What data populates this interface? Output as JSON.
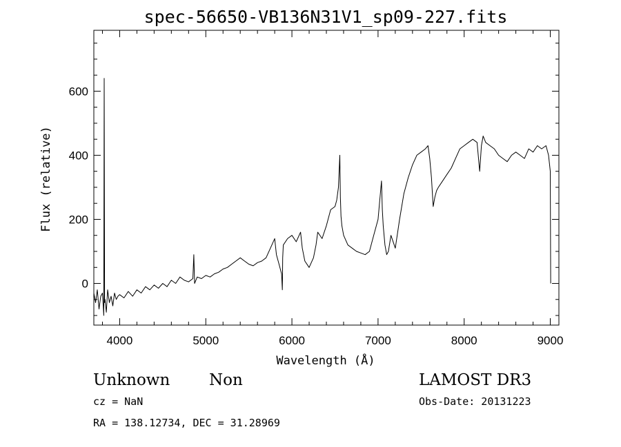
{
  "chart_data": {
    "type": "line",
    "title": "spec-56650-VB136N31V1_sp09-227.fits",
    "xlabel": "Wavelength (Å)",
    "ylabel": "Flux (relative)",
    "xlim": [
      3700,
      9100
    ],
    "ylim": [
      -130,
      790
    ],
    "x_ticks": [
      4000,
      5000,
      6000,
      7000,
      8000,
      9000
    ],
    "x_tick_labels": [
      "4000",
      "5000",
      "6000",
      "7000",
      "8000",
      "9000"
    ],
    "y_ticks": [
      0,
      200,
      400,
      600
    ],
    "y_tick_labels": [
      "0",
      "200",
      "400",
      "600"
    ],
    "grid": false,
    "series": [
      {
        "color": "#000000",
        "x": [
          3700,
          3720,
          3740,
          3760,
          3780,
          3800,
          3815,
          3820,
          3825,
          3830,
          3845,
          3860,
          3880,
          3900,
          3920,
          3940,
          3960,
          3980,
          4000,
          4050,
          4100,
          4150,
          4200,
          4250,
          4300,
          4350,
          4400,
          4450,
          4500,
          4550,
          4600,
          4650,
          4700,
          4750,
          4800,
          4850,
          4861,
          4870,
          4900,
          4950,
          5000,
          5050,
          5100,
          5150,
          5200,
          5250,
          5300,
          5350,
          5400,
          5450,
          5500,
          5550,
          5600,
          5650,
          5700,
          5750,
          5800,
          5820,
          5850,
          5880,
          5889,
          5893,
          5900,
          5950,
          6000,
          6050,
          6100,
          6120,
          6150,
          6200,
          6250,
          6280,
          6300,
          6350,
          6400,
          6450,
          6500,
          6520,
          6540,
          6556,
          6563,
          6570,
          6580,
          6600,
          6650,
          6700,
          6750,
          6800,
          6850,
          6900,
          6950,
          7000,
          7020,
          7040,
          7050,
          7060,
          7080,
          7100,
          7120,
          7150,
          7200,
          7250,
          7300,
          7350,
          7400,
          7450,
          7500,
          7550,
          7580,
          7600,
          7620,
          7640,
          7660,
          7680,
          7700,
          7750,
          7800,
          7850,
          7900,
          7950,
          8000,
          8050,
          8100,
          8150,
          8180,
          8200,
          8220,
          8250,
          8300,
          8350,
          8400,
          8450,
          8500,
          8550,
          8600,
          8650,
          8700,
          8750,
          8800,
          8850,
          8900,
          8950,
          8980,
          9000,
          9005
        ],
        "values": [
          -30,
          -60,
          -20,
          -80,
          -40,
          -30,
          -100,
          640,
          -60,
          -50,
          -90,
          -20,
          -60,
          -40,
          -70,
          -30,
          -50,
          -40,
          -35,
          -45,
          -25,
          -40,
          -20,
          -30,
          -10,
          -20,
          -5,
          -15,
          0,
          -10,
          10,
          0,
          20,
          10,
          5,
          15,
          90,
          0,
          20,
          15,
          25,
          20,
          30,
          35,
          45,
          50,
          60,
          70,
          80,
          70,
          60,
          55,
          65,
          70,
          80,
          110,
          140,
          90,
          60,
          30,
          -20,
          80,
          120,
          140,
          150,
          130,
          160,
          110,
          70,
          50,
          80,
          120,
          160,
          140,
          180,
          230,
          240,
          260,
          300,
          400,
          270,
          210,
          180,
          150,
          120,
          110,
          100,
          95,
          90,
          100,
          150,
          200,
          260,
          320,
          230,
          180,
          120,
          90,
          100,
          150,
          110,
          200,
          280,
          330,
          370,
          400,
          410,
          420,
          430,
          390,
          330,
          240,
          270,
          290,
          300,
          320,
          340,
          360,
          390,
          420,
          430,
          440,
          450,
          440,
          350,
          430,
          460,
          440,
          430,
          420,
          400,
          390,
          380,
          400,
          410,
          400,
          390,
          420,
          410,
          430,
          420,
          430,
          400,
          350,
          0
        ]
      }
    ]
  },
  "info": {
    "class_label": "Unknown",
    "subclass_label": "Non",
    "redshift_text": "cz = NaN",
    "coords_text": "RA = 138.12734, DEC =  31.28969",
    "survey_label": "LAMOST DR3",
    "obs_date_text": "Obs-Date: 20131223"
  }
}
